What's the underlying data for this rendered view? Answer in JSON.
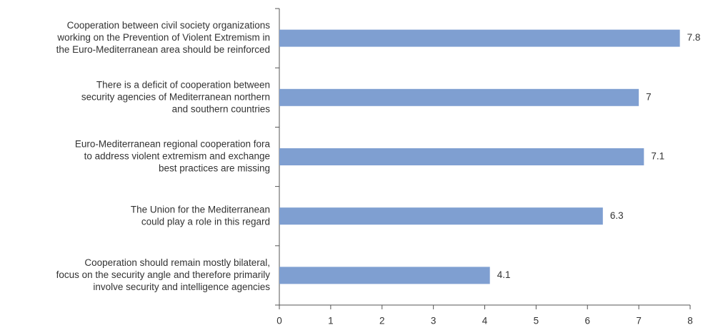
{
  "chart_data": {
    "type": "barh",
    "categories": [
      [
        "Cooperation between civil society organizations",
        "working on the Prevention of Violent Extremism in",
        "the Euro-Mediterranean area should be reinforced"
      ],
      [
        "There is a deficit of cooperation between",
        "security agencies of Mediterranean northern",
        "and southern countries"
      ],
      [
        "Euro-Mediterranean regional cooperation fora",
        "to address violent extremism and exchange",
        "best practices are missing"
      ],
      [
        "The Union for the Mediterranean",
        "could play a role in this regard"
      ],
      [
        "Cooperation should remain mostly bilateral,",
        "focus on the security angle and therefore primarily",
        "involve security and intelligence agencies"
      ]
    ],
    "values": [
      7.8,
      7,
      7.1,
      6.3,
      4.1
    ],
    "color": "#7f9fd1",
    "xlim": [
      0,
      8
    ],
    "xticks": [
      0,
      1,
      2,
      3,
      4,
      5,
      6,
      7,
      8
    ]
  }
}
